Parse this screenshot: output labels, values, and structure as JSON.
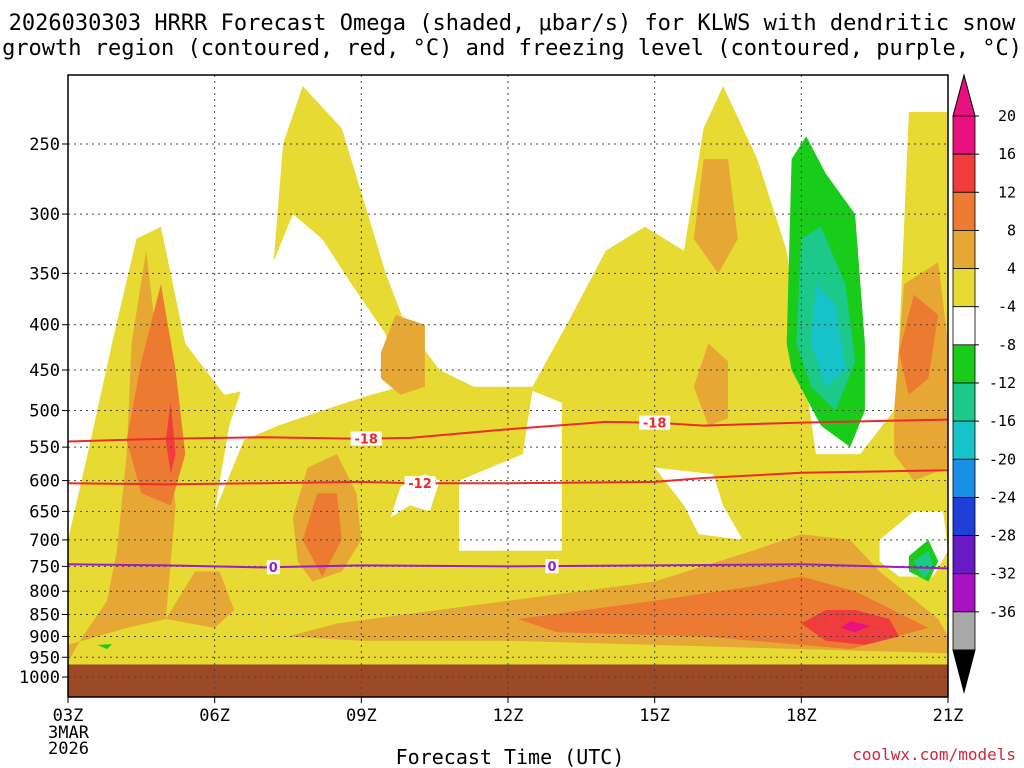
{
  "title": {
    "line1": "2026030303 HRRR Forecast Omega (shaded, μbar/s) for KLWS with dendritic snow",
    "line2": "growth region (contoured, red, °C) and freezing level (contoured, purple, °C)"
  },
  "credit": "coolwx.com/models",
  "chart_data": {
    "type": "heatmap",
    "title": "2026030303 HRRR Forecast Omega (shaded, μbar/s) for KLWS with dendritic snow growth region (contoured, red, °C) and freezing level (contoured, purple, °C)",
    "xlabel": "Forecast Time (UTC)",
    "ylabel": "",
    "x_ticks": [
      {
        "hour": 3,
        "label": "03Z"
      },
      {
        "hour": 6,
        "label": "06Z"
      },
      {
        "hour": 9,
        "label": "09Z"
      },
      {
        "hour": 12,
        "label": "12Z"
      },
      {
        "hour": 15,
        "label": "15Z"
      },
      {
        "hour": 18,
        "label": "18Z"
      },
      {
        "hour": 21,
        "label": "21Z"
      }
    ],
    "x_start_date": [
      "3MAR",
      "2026"
    ],
    "xlim": [
      3,
      21
    ],
    "y_ticks": [
      250,
      300,
      350,
      400,
      450,
      500,
      550,
      600,
      650,
      700,
      750,
      800,
      850,
      900,
      950,
      1000
    ],
    "ylim": [
      1000,
      200
    ],
    "yscale": "log-pressure",
    "colorbar": {
      "labels": [
        "20",
        "16",
        "12",
        "8",
        "4",
        "-4",
        "-8",
        "-12",
        "-16",
        "-20",
        "-24",
        "-28",
        "-32",
        "-36"
      ],
      "bins": [
        {
          "range": [
            20,
            24
          ],
          "color": "#e8117f"
        },
        {
          "range": [
            16,
            20
          ],
          "color": "#f03c3c"
        },
        {
          "range": [
            12,
            16
          ],
          "color": "#ec7a30"
        },
        {
          "range": [
            8,
            12
          ],
          "color": "#e6a734"
        },
        {
          "range": [
            4,
            8
          ],
          "color": "#e7da32"
        },
        {
          "range": [
            -4,
            4
          ],
          "color": "#ffffff"
        },
        {
          "range": [
            -8,
            -4
          ],
          "color": "#19cc19"
        },
        {
          "range": [
            -12,
            -8
          ],
          "color": "#1dc98a"
        },
        {
          "range": [
            -16,
            -12
          ],
          "color": "#15c3c9"
        },
        {
          "range": [
            -20,
            -16
          ],
          "color": "#1a8fe6"
        },
        {
          "range": [
            -24,
            -20
          ],
          "color": "#1f3fd9"
        },
        {
          "range": [
            -28,
            -24
          ],
          "color": "#6a1ac4"
        },
        {
          "range": [
            -32,
            -28
          ],
          "color": "#a812c2"
        },
        {
          "range": [
            -36,
            -32
          ],
          "color": "#a8a8a8"
        }
      ],
      "overflow_top": "#e8117f",
      "overflow_bottom": "#000000"
    },
    "contours": [
      {
        "name": "dendritic-top",
        "label": "-18",
        "color": "#ee2b2b",
        "points": [
          [
            3,
            542
          ],
          [
            5,
            538
          ],
          [
            7,
            536
          ],
          [
            9,
            538
          ],
          [
            10,
            537
          ],
          [
            12,
            525
          ],
          [
            14,
            515
          ],
          [
            15,
            516
          ],
          [
            16,
            520
          ],
          [
            18,
            516
          ],
          [
            21,
            512
          ]
        ],
        "label_positions": [
          9.1,
          15.0
        ]
      },
      {
        "name": "dendritic-bottom",
        "label": "-12",
        "color": "#ee2b2b",
        "points": [
          [
            3,
            604
          ],
          [
            5,
            606
          ],
          [
            7,
            604
          ],
          [
            9,
            602
          ],
          [
            10,
            604
          ],
          [
            12,
            604
          ],
          [
            15,
            602
          ],
          [
            16,
            596
          ],
          [
            18,
            588
          ],
          [
            21,
            584
          ]
        ],
        "label_positions": [
          10.2
        ]
      },
      {
        "name": "freezing-level",
        "label": "0",
        "color": "#9b1fc7",
        "points": [
          [
            3,
            746
          ],
          [
            5,
            748
          ],
          [
            7,
            752
          ],
          [
            9,
            748
          ],
          [
            12,
            750
          ],
          [
            15,
            748
          ],
          [
            18,
            746
          ],
          [
            21,
            754
          ]
        ],
        "label_positions": [
          7.2,
          12.9
        ]
      }
    ],
    "omega_regions": [
      {
        "bin": 4,
        "points": [
          [
            3.0,
            970
          ],
          [
            3.0,
            700
          ],
          [
            3.4,
            560
          ],
          [
            3.9,
            420
          ],
          [
            4.4,
            320
          ],
          [
            4.9,
            310
          ],
          [
            5.4,
            420
          ],
          [
            6.2,
            480
          ],
          [
            7.0,
            470
          ],
          [
            7.4,
            250
          ],
          [
            7.8,
            215
          ],
          [
            8.6,
            240
          ],
          [
            9.5,
            350
          ],
          [
            9.9,
            400
          ],
          [
            10.6,
            450
          ],
          [
            11.3,
            470
          ],
          [
            12.5,
            470
          ],
          [
            13.2,
            400
          ],
          [
            14.0,
            330
          ],
          [
            14.8,
            310
          ],
          [
            15.6,
            330
          ],
          [
            16.0,
            240
          ],
          [
            16.4,
            215
          ],
          [
            17.1,
            260
          ],
          [
            17.7,
            330
          ],
          [
            18.3,
            560
          ],
          [
            19.2,
            560
          ],
          [
            19.9,
            500
          ],
          [
            20.0,
            420
          ],
          [
            20.2,
            230
          ],
          [
            21.0,
            230
          ],
          [
            21.0,
            970
          ]
        ]
      },
      {
        "bin": -4,
        "points": [
          [
            6.0,
            650
          ],
          [
            6.6,
            540
          ],
          [
            7.3,
            520
          ],
          [
            8.2,
            500
          ],
          [
            9.2,
            480
          ],
          [
            9.8,
            470
          ],
          [
            9.5,
            410
          ],
          [
            8.8,
            360
          ],
          [
            8.2,
            320
          ],
          [
            7.6,
            300
          ],
          [
            7.2,
            340
          ],
          [
            6.8,
            430
          ],
          [
            6.3,
            520
          ]
        ]
      },
      {
        "bin": -4,
        "points": [
          [
            11.0,
            720
          ],
          [
            13.1,
            720
          ],
          [
            13.1,
            490
          ],
          [
            12.5,
            475
          ],
          [
            12.3,
            560
          ],
          [
            11.0,
            600
          ]
        ]
      },
      {
        "bin": -4,
        "points": [
          [
            9.6,
            660
          ],
          [
            10.0,
            640
          ],
          [
            10.4,
            650
          ],
          [
            10.6,
            600
          ],
          [
            10.3,
            590
          ],
          [
            9.8,
            610
          ]
        ]
      },
      {
        "bin": -4,
        "points": [
          [
            15.0,
            580
          ],
          [
            15.6,
            640
          ],
          [
            15.9,
            690
          ],
          [
            16.8,
            700
          ],
          [
            16.4,
            640
          ],
          [
            16.2,
            590
          ]
        ]
      },
      {
        "bin": -4,
        "points": [
          [
            19.6,
            700
          ],
          [
            20.3,
            650
          ],
          [
            20.9,
            650
          ],
          [
            21.0,
            720
          ],
          [
            20.7,
            770
          ],
          [
            20.0,
            770
          ],
          [
            19.6,
            740
          ]
        ]
      },
      {
        "bin": 8,
        "points": [
          [
            3.0,
            960
          ],
          [
            3.0,
            920
          ],
          [
            4.2,
            880
          ],
          [
            5.0,
            860
          ],
          [
            5.2,
            640
          ],
          [
            4.8,
            410
          ],
          [
            4.6,
            330
          ],
          [
            4.3,
            420
          ],
          [
            4.2,
            560
          ],
          [
            4.0,
            720
          ],
          [
            3.8,
            820
          ],
          [
            3.3,
            900
          ]
        ]
      },
      {
        "bin": 8,
        "points": [
          [
            5.6,
            760
          ],
          [
            5.0,
            860
          ],
          [
            6.0,
            880
          ],
          [
            6.4,
            840
          ],
          [
            6.1,
            760
          ]
        ]
      },
      {
        "bin": 8,
        "points": [
          [
            7.6,
            660
          ],
          [
            7.9,
            580
          ],
          [
            8.5,
            560
          ],
          [
            8.9,
            620
          ],
          [
            9.0,
            700
          ],
          [
            8.6,
            760
          ],
          [
            8.0,
            780
          ],
          [
            7.7,
            740
          ]
        ]
      },
      {
        "bin": 8,
        "points": [
          [
            8.5,
            870
          ],
          [
            12.0,
            820
          ],
          [
            15.0,
            780
          ],
          [
            17.0,
            720
          ],
          [
            18.0,
            690
          ],
          [
            19.0,
            700
          ],
          [
            19.6,
            760
          ],
          [
            20.8,
            860
          ],
          [
            21.0,
            900
          ],
          [
            21.0,
            940
          ],
          [
            18.0,
            930
          ],
          [
            15.0,
            920
          ],
          [
            12.0,
            910
          ],
          [
            9.0,
            910
          ],
          [
            7.5,
            900
          ]
        ]
      },
      {
        "bin": 8,
        "points": [
          [
            9.4,
            430
          ],
          [
            9.7,
            390
          ],
          [
            10.3,
            400
          ],
          [
            10.3,
            470
          ],
          [
            9.8,
            480
          ],
          [
            9.4,
            460
          ]
        ]
      },
      {
        "bin": 8,
        "points": [
          [
            15.8,
            470
          ],
          [
            16.1,
            420
          ],
          [
            16.5,
            440
          ],
          [
            16.5,
            510
          ],
          [
            16.1,
            520
          ]
        ]
      },
      {
        "bin": 8,
        "points": [
          [
            15.8,
            320
          ],
          [
            16.0,
            260
          ],
          [
            16.5,
            260
          ],
          [
            16.7,
            320
          ],
          [
            16.3,
            350
          ]
        ]
      },
      {
        "bin": 8,
        "points": [
          [
            19.9,
            500
          ],
          [
            20.1,
            360
          ],
          [
            20.8,
            340
          ],
          [
            21.0,
            420
          ],
          [
            21.0,
            580
          ],
          [
            20.3,
            600
          ],
          [
            19.9,
            560
          ]
        ]
      },
      {
        "bin": 12,
        "points": [
          [
            4.2,
            540
          ],
          [
            4.5,
            440
          ],
          [
            4.9,
            360
          ],
          [
            5.2,
            450
          ],
          [
            5.4,
            560
          ],
          [
            5.1,
            640
          ],
          [
            4.5,
            620
          ]
        ]
      },
      {
        "bin": 12,
        "points": [
          [
            7.8,
            700
          ],
          [
            8.1,
            620
          ],
          [
            8.5,
            620
          ],
          [
            8.6,
            700
          ],
          [
            8.2,
            770
          ]
        ]
      },
      {
        "bin": 12,
        "points": [
          [
            12.2,
            860
          ],
          [
            15.0,
            820
          ],
          [
            17.0,
            790
          ],
          [
            18.0,
            770
          ],
          [
            19.1,
            800
          ],
          [
            20.6,
            880
          ],
          [
            19.0,
            930
          ],
          [
            16.0,
            900
          ],
          [
            13.0,
            890
          ]
        ]
      },
      {
        "bin": 12,
        "points": [
          [
            20.0,
            430
          ],
          [
            20.3,
            370
          ],
          [
            20.8,
            390
          ],
          [
            20.6,
            460
          ],
          [
            20.2,
            480
          ]
        ]
      },
      {
        "bin": 16,
        "points": [
          [
            18.0,
            870
          ],
          [
            18.5,
            840
          ],
          [
            19.1,
            840
          ],
          [
            19.8,
            860
          ],
          [
            20.0,
            900
          ],
          [
            19.3,
            920
          ],
          [
            18.5,
            910
          ]
        ]
      },
      {
        "bin": 16,
        "points": [
          [
            5.0,
            540
          ],
          [
            5.1,
            490
          ],
          [
            5.2,
            560
          ],
          [
            5.1,
            590
          ]
        ]
      },
      {
        "bin": 20,
        "points": [
          [
            18.8,
            880
          ],
          [
            19.0,
            865
          ],
          [
            19.4,
            875
          ],
          [
            19.1,
            890
          ]
        ]
      },
      {
        "bin": -8,
        "points": [
          [
            17.7,
            420
          ],
          [
            17.8,
            260
          ],
          [
            18.1,
            245
          ],
          [
            18.5,
            270
          ],
          [
            19.1,
            300
          ],
          [
            19.3,
            420
          ],
          [
            19.3,
            500
          ],
          [
            19.0,
            550
          ],
          [
            18.4,
            520
          ],
          [
            17.8,
            450
          ]
        ]
      },
      {
        "bin": -12,
        "points": [
          [
            17.9,
            420
          ],
          [
            18.0,
            320
          ],
          [
            18.4,
            310
          ],
          [
            18.9,
            360
          ],
          [
            19.1,
            440
          ],
          [
            18.7,
            500
          ],
          [
            18.2,
            470
          ]
        ]
      },
      {
        "bin": -16,
        "points": [
          [
            18.2,
            420
          ],
          [
            18.3,
            360
          ],
          [
            18.7,
            380
          ],
          [
            18.9,
            450
          ],
          [
            18.5,
            470
          ]
        ]
      },
      {
        "bin": -8,
        "points": [
          [
            20.2,
            730
          ],
          [
            20.6,
            700
          ],
          [
            20.8,
            740
          ],
          [
            20.6,
            780
          ],
          [
            20.2,
            760
          ]
        ]
      },
      {
        "bin": -12,
        "points": [
          [
            20.3,
            740
          ],
          [
            20.6,
            720
          ],
          [
            20.7,
            750
          ],
          [
            20.5,
            775
          ]
        ]
      },
      {
        "bin": -8,
        "points": [
          [
            3.6,
            920
          ],
          [
            3.9,
            918
          ],
          [
            3.8,
            930
          ]
        ]
      }
    ],
    "surface_color": "#9c4a26",
    "surface_top_pressure": 968
  }
}
